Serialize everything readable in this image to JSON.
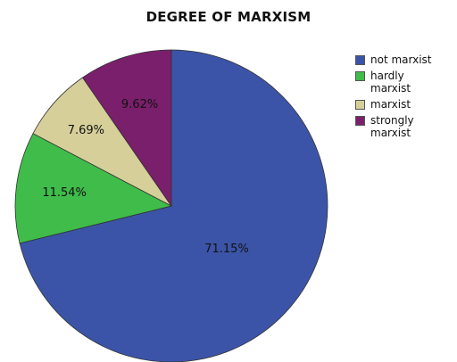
{
  "chart_data": {
    "type": "pie",
    "title": "DEGREE OF MARXISM",
    "legend_position": "right",
    "slices": [
      {
        "label": "not marxist",
        "value": 71.15,
        "display": "71.15%",
        "color": "#3b54a8"
      },
      {
        "label": "hardly marxist",
        "value": 11.54,
        "display": "11.54%",
        "color": "#3fbc4a"
      },
      {
        "label": "marxist",
        "value": 7.69,
        "display": "7.69%",
        "color": "#d6cf9a"
      },
      {
        "label": "strongly marxist",
        "value": 9.62,
        "display": "9.62%",
        "color": "#7a1f6b"
      }
    ]
  }
}
